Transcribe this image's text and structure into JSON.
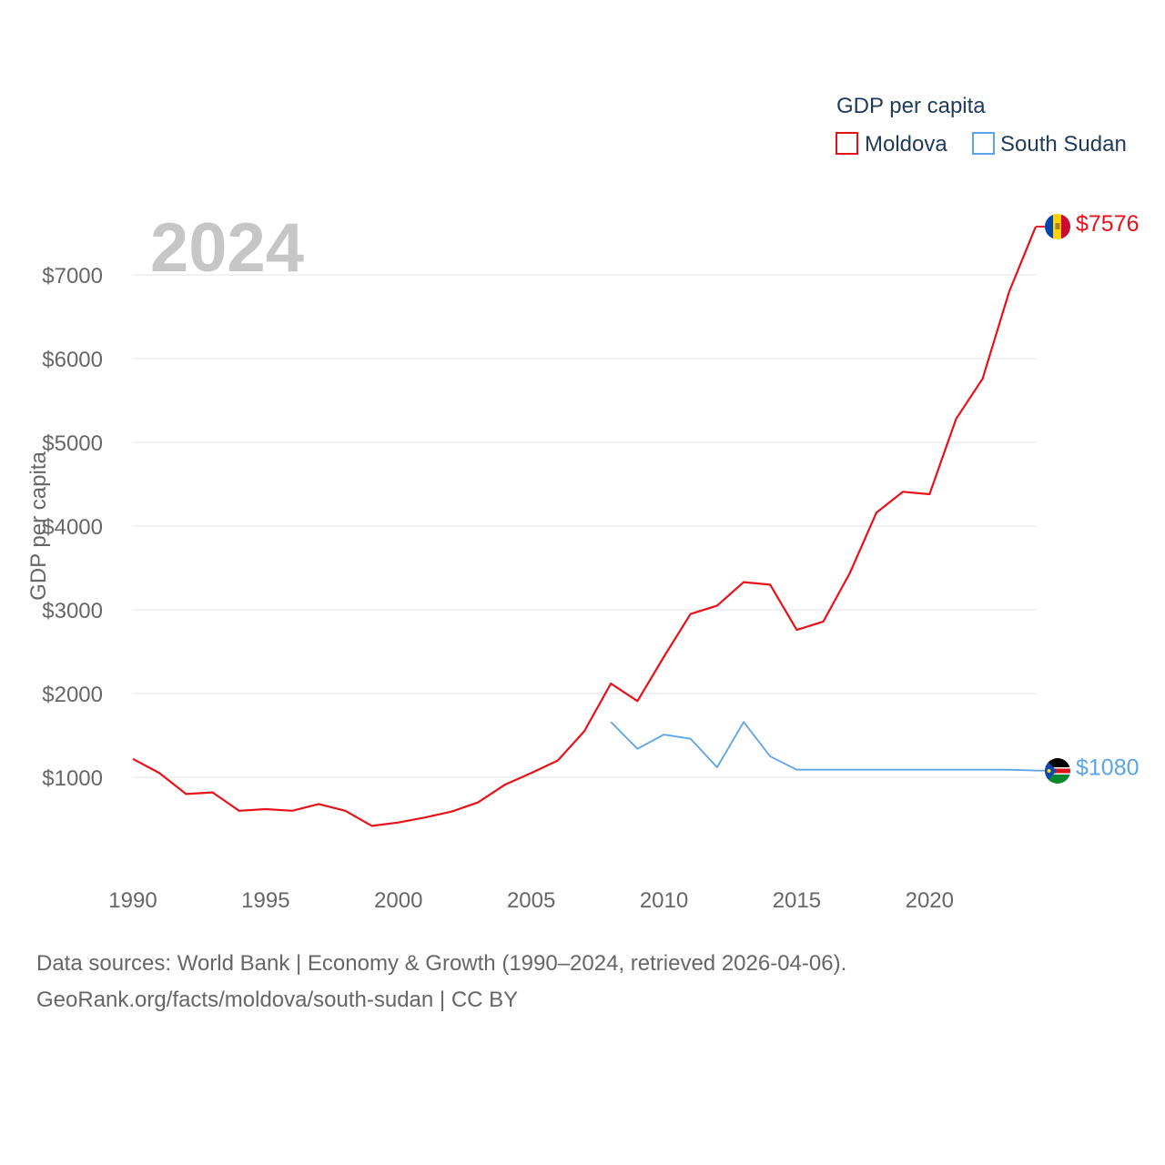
{
  "chart_data": {
    "type": "line",
    "year_display": "2024",
    "ylabel": "GDP per capita",
    "xlabel": "",
    "legend_title": "GDP per capita",
    "legend_position": "top-right",
    "ylim": [
      0,
      7600
    ],
    "xlim": [
      1990,
      2024
    ],
    "x_ticks": [
      1990,
      1995,
      2000,
      2005,
      2010,
      2015,
      2020
    ],
    "x_tick_labels": [
      "1990",
      "1995",
      "2000",
      "2005",
      "2010",
      "2015",
      "2020"
    ],
    "y_ticks": [
      1000,
      2000,
      3000,
      4000,
      5000,
      6000,
      7000
    ],
    "y_tick_labels": [
      "$1000",
      "$2000",
      "$3000",
      "$4000",
      "$5000",
      "$6000",
      "$7000"
    ],
    "grid": true,
    "series": [
      {
        "name": "Moldova",
        "color": "#e8111a",
        "end_label": "$7576",
        "flag": "moldova-flag",
        "x": [
          1990,
          1991,
          1992,
          1993,
          1994,
          1995,
          1996,
          1997,
          1998,
          1999,
          2000,
          2001,
          2002,
          2003,
          2004,
          2005,
          2006,
          2007,
          2008,
          2009,
          2010,
          2011,
          2012,
          2013,
          2014,
          2015,
          2016,
          2017,
          2018,
          2019,
          2020,
          2021,
          2022,
          2023,
          2024
        ],
        "values": [
          1220,
          1050,
          800,
          820,
          600,
          620,
          600,
          680,
          600,
          420,
          460,
          520,
          590,
          700,
          910,
          1050,
          1200,
          1550,
          2120,
          1910,
          2440,
          2950,
          3050,
          3330,
          3300,
          2760,
          2860,
          3440,
          4160,
          4410,
          4380,
          5280,
          5760,
          6800,
          7576
        ]
      },
      {
        "name": "South Sudan",
        "color": "#5ba4e6",
        "end_label": "$1080",
        "flag": "south-sudan-flag",
        "x": [
          2008,
          2009,
          2010,
          2011,
          2012,
          2013,
          2014,
          2015,
          2016,
          2017,
          2018,
          2019,
          2020,
          2021,
          2022,
          2023,
          2024
        ],
        "values": [
          1660,
          1340,
          1510,
          1460,
          1120,
          1660,
          1250,
          1090,
          1090,
          1090,
          1090,
          1090,
          1090,
          1090,
          1090,
          1090,
          1080
        ]
      }
    ]
  },
  "footer": {
    "line1": "Data sources: World Bank | Economy & Growth (1990–2024, retrieved 2026-04-06).",
    "line2": "GeoRank.org/facts/moldova/south-sudan | CC BY"
  }
}
